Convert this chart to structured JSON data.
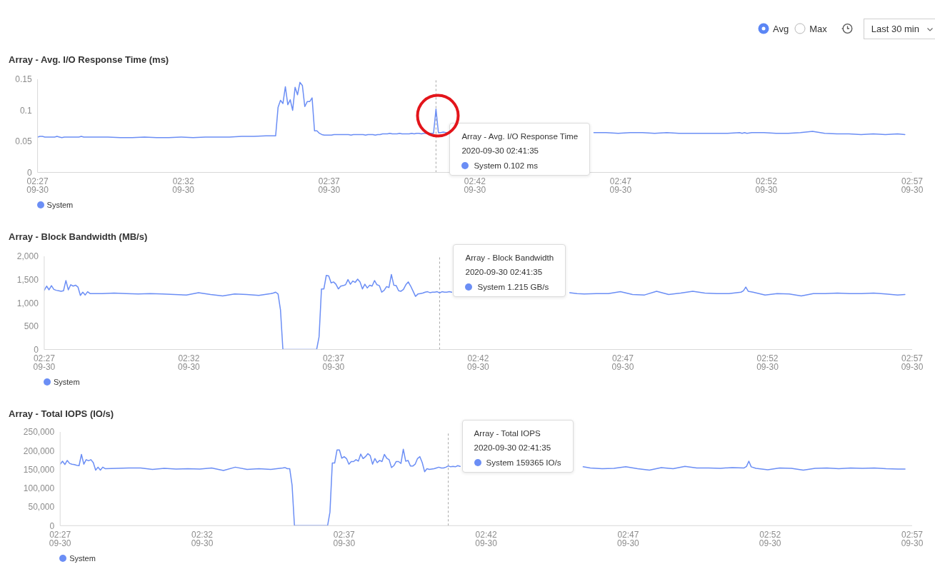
{
  "chart_data": [
    {
      "type": "other",
      "annotations": [
        "Avg",
        "Max",
        "Last 30 min"
      ]
    },
    {
      "type": "line",
      "title": "Array - Avg. I/O Response Time (ms)",
      "x": [
        "2020-09-30T02:27:55",
        "2020-09-30T02:28:00",
        "2020-09-30T02:28:05",
        "2020-09-30T02:28:10",
        "2020-09-30T02:28:15",
        "2020-09-30T02:28:20",
        "2020-09-30T02:28:25",
        "2020-09-30T02:28:30",
        "2020-09-30T02:28:35",
        "2020-09-30T02:28:40",
        "2020-09-30T02:28:45",
        "2020-09-30T02:28:50",
        "2020-09-30T02:28:55",
        "2020-09-30T02:29:00",
        "2020-09-30T02:29:05",
        "2020-09-30T02:29:10",
        "2020-09-30T02:29:15",
        "2020-09-30T02:29:20",
        "2020-09-30T02:29:25",
        "2020-09-30T02:29:30",
        "2020-09-30T02:29:55",
        "2020-09-30T02:30:20",
        "2020-09-30T02:30:45",
        "2020-09-30T02:31:10",
        "2020-09-30T02:31:35",
        "2020-09-30T02:32:00",
        "2020-09-30T02:32:25",
        "2020-09-30T02:32:50",
        "2020-09-30T02:33:15",
        "2020-09-30T02:33:40",
        "2020-09-30T02:34:05",
        "2020-09-30T02:34:30",
        "2020-09-30T02:34:55",
        "2020-09-30T02:35:20",
        "2020-09-30T02:35:45",
        "2020-09-30T02:35:50",
        "2020-09-30T02:35:55",
        "2020-09-30T02:36:00",
        "2020-09-30T02:36:05",
        "2020-09-30T02:36:10",
        "2020-09-30T02:36:15",
        "2020-09-30T02:36:20",
        "2020-09-30T02:36:25",
        "2020-09-30T02:36:30",
        "2020-09-30T02:36:35",
        "2020-09-30T02:36:40",
        "2020-09-30T02:36:45",
        "2020-09-30T02:36:50",
        "2020-09-30T02:36:55",
        "2020-09-30T02:37:00",
        "2020-09-30T02:37:05",
        "2020-09-30T02:37:10",
        "2020-09-30T02:37:15",
        "2020-09-30T02:37:20",
        "2020-09-30T02:37:25",
        "2020-09-30T02:37:30",
        "2020-09-30T02:37:35",
        "2020-09-30T02:37:40",
        "2020-09-30T02:37:45",
        "2020-09-30T02:37:50",
        "2020-09-30T02:37:55",
        "2020-09-30T02:38:00",
        "2020-09-30T02:38:05",
        "2020-09-30T02:38:10",
        "2020-09-30T02:38:15",
        "2020-09-30T02:38:20",
        "2020-09-30T02:38:25",
        "2020-09-30T02:38:30",
        "2020-09-30T02:38:35",
        "2020-09-30T02:38:40",
        "2020-09-30T02:38:45",
        "2020-09-30T02:38:50",
        "2020-09-30T02:38:55",
        "2020-09-30T02:39:00",
        "2020-09-30T02:39:05",
        "2020-09-30T02:39:10",
        "2020-09-30T02:39:15",
        "2020-09-30T02:39:20",
        "2020-09-30T02:39:25",
        "2020-09-30T02:39:30",
        "2020-09-30T02:39:35",
        "2020-09-30T02:39:40",
        "2020-09-30T02:39:45",
        "2020-09-30T02:39:50",
        "2020-09-30T02:39:55",
        "2020-09-30T02:40:00",
        "2020-09-30T02:40:05",
        "2020-09-30T02:40:10",
        "2020-09-30T02:40:15",
        "2020-09-30T02:40:20",
        "2020-09-30T02:40:25",
        "2020-09-30T02:40:30",
        "2020-09-30T02:40:35",
        "2020-09-30T02:40:40",
        "2020-09-30T02:40:45",
        "2020-09-30T02:40:50",
        "2020-09-30T02:40:55",
        "2020-09-30T02:41:00",
        "2020-09-30T02:41:05",
        "2020-09-30T02:41:10",
        "2020-09-30T02:41:15",
        "2020-09-30T02:41:20",
        "2020-09-30T02:41:25",
        "2020-09-30T02:41:30",
        "2020-09-30T02:41:35",
        "2020-09-30T02:41:40",
        "2020-09-30T02:41:45",
        "2020-09-30T02:41:50",
        "2020-09-30T02:41:55",
        "2020-09-30T02:42:00",
        "2020-09-30T02:42:05",
        "2020-09-30T02:46:05",
        "2020-09-30T02:46:20",
        "2020-09-30T02:46:35",
        "2020-09-30T02:47:00",
        "2020-09-30T02:47:25",
        "2020-09-30T02:47:50",
        "2020-09-30T02:48:15",
        "2020-09-30T02:48:40",
        "2020-09-30T02:49:05",
        "2020-09-30T02:49:30",
        "2020-09-30T02:49:55",
        "2020-09-30T02:50:20",
        "2020-09-30T02:50:45",
        "2020-09-30T02:51:10",
        "2020-09-30T02:51:35",
        "2020-09-30T02:52:00",
        "2020-09-30T02:52:05",
        "2020-09-30T02:52:10",
        "2020-09-30T02:52:15",
        "2020-09-30T02:52:25",
        "2020-09-30T02:52:50",
        "2020-09-30T02:53:15",
        "2020-09-30T02:53:40",
        "2020-09-30T02:54:05",
        "2020-09-30T02:54:30",
        "2020-09-30T02:54:55",
        "2020-09-30T02:55:20",
        "2020-09-30T02:55:45",
        "2020-09-30T02:56:10",
        "2020-09-30T02:56:35",
        "2020-09-30T02:57:00",
        "2020-09-30T02:57:25",
        "2020-09-30T02:57:40"
      ],
      "series": [
        {
          "name": "System",
          "color": "#6b8ef5",
          "values": [
            0.057,
            0.058,
            0.058,
            0.057,
            0.057,
            0.057,
            0.057,
            0.057,
            0.058,
            0.057,
            0.056,
            0.057,
            0.057,
            0.057,
            0.057,
            0.057,
            0.057,
            0.057,
            0.058,
            0.057,
            0.057,
            0.057,
            0.056,
            0.056,
            0.057,
            0.056,
            0.056,
            0.057,
            0.056,
            0.057,
            0.057,
            0.057,
            0.058,
            0.058,
            0.059,
            0.059,
            0.059,
            0.059,
            0.059,
            0.105,
            0.116,
            0.111,
            0.138,
            0.109,
            0.117,
            0.1,
            0.137,
            0.125,
            0.145,
            0.14,
            0.106,
            0.114,
            0.114,
            0.12,
            0.067,
            0.067,
            0.063,
            0.061,
            0.06,
            0.06,
            0.06,
            0.06,
            0.061,
            0.061,
            0.061,
            0.061,
            0.061,
            0.061,
            0.061,
            0.06,
            0.061,
            0.061,
            0.061,
            0.061,
            0.061,
            0.06,
            0.061,
            0.061,
            0.061,
            0.06,
            0.061,
            0.061,
            0.062,
            0.062,
            0.062,
            0.063,
            0.062,
            0.062,
            0.062,
            0.063,
            0.062,
            0.062,
            0.062,
            0.062,
            0.063,
            0.062,
            0.063,
            0.063,
            0.062,
            0.063,
            0.063,
            0.063,
            0.063,
            0.063,
            0.102,
            0.064,
            0.064,
            0.065,
            0.064,
            0.063,
            null,
            null,
            null,
            null,
            0.064,
            0.064,
            0.063,
            0.064,
            0.064,
            0.063,
            0.064,
            0.063,
            0.063,
            0.063,
            0.063,
            0.063,
            0.064,
            0.063,
            0.064,
            0.063,
            0.064,
            0.064,
            0.063,
            0.063,
            0.064,
            0.066,
            0.063,
            0.062,
            0.062,
            0.061,
            0.062,
            0.061,
            0.062,
            0.061
          ]
        }
      ],
      "xlim": [
        "2020-09-30T02:27:55",
        "2020-09-30T02:57:55"
      ],
      "xticks": [
        {
          "value": "2020-09-30T02:27:55",
          "label": "02:27\n09-30"
        },
        {
          "value": "2020-09-30T02:32:55",
          "label": "02:32\n09-30"
        },
        {
          "value": "2020-09-30T02:37:55",
          "label": "02:37\n09-30"
        },
        {
          "value": "2020-09-30T02:42:55",
          "label": "02:42\n09-30"
        },
        {
          "value": "2020-09-30T02:47:55",
          "label": "02:47\n09-30"
        },
        {
          "value": "2020-09-30T02:52:55",
          "label": "02:52\n09-30"
        },
        {
          "value": "2020-09-30T02:57:55",
          "label": "02:57\n09-30"
        }
      ],
      "ylim": [
        0,
        0.15
      ],
      "yticks": [
        0,
        0.05,
        0.1,
        0.15
      ],
      "legend": "bottom left",
      "ref_lines": [
        {
          "axis": "x",
          "value": "2020-09-30T02:41:35",
          "color": "#a6a6a6",
          "line_style": "dashed"
        }
      ],
      "annotations": [
        "Array - Avg. I/O Response Time",
        "2020-09-30 02:41:35",
        "System 0.102 ms"
      ]
    },
    {
      "type": "line",
      "title": "Array - Block Bandwidth (MB/s)",
      "x": [
        "2020-09-30T02:27:55",
        "2020-09-30T02:28:00",
        "2020-09-30T02:28:05",
        "2020-09-30T02:28:10",
        "2020-09-30T02:28:15",
        "2020-09-30T02:28:20",
        "2020-09-30T02:28:25",
        "2020-09-30T02:28:30",
        "2020-09-30T02:28:35",
        "2020-09-30T02:28:40",
        "2020-09-30T02:28:45",
        "2020-09-30T02:28:50",
        "2020-09-30T02:28:55",
        "2020-09-30T02:29:00",
        "2020-09-30T02:29:05",
        "2020-09-30T02:29:10",
        "2020-09-30T02:29:15",
        "2020-09-30T02:29:20",
        "2020-09-30T02:29:25",
        "2020-09-30T02:29:30",
        "2020-09-30T02:29:55",
        "2020-09-30T02:30:20",
        "2020-09-30T02:30:45",
        "2020-09-30T02:31:10",
        "2020-09-30T02:31:35",
        "2020-09-30T02:32:00",
        "2020-09-30T02:32:25",
        "2020-09-30T02:32:50",
        "2020-09-30T02:33:15",
        "2020-09-30T02:33:40",
        "2020-09-30T02:34:05",
        "2020-09-30T02:34:30",
        "2020-09-30T02:34:55",
        "2020-09-30T02:35:20",
        "2020-09-30T02:35:45",
        "2020-09-30T02:35:50",
        "2020-09-30T02:35:55",
        "2020-09-30T02:36:00",
        "2020-09-30T02:36:05",
        "2020-09-30T02:36:10",
        "2020-09-30T02:36:15",
        "2020-09-30T02:36:20",
        "2020-09-30T02:36:25",
        "2020-09-30T02:36:30",
        "2020-09-30T02:36:35",
        "2020-09-30T02:36:40",
        "2020-09-30T02:36:45",
        "2020-09-30T02:36:50",
        "2020-09-30T02:36:55",
        "2020-09-30T02:37:00",
        "2020-09-30T02:37:05",
        "2020-09-30T02:37:10",
        "2020-09-30T02:37:15",
        "2020-09-30T02:37:20",
        "2020-09-30T02:37:25",
        "2020-09-30T02:37:30",
        "2020-09-30T02:37:35",
        "2020-09-30T02:37:40",
        "2020-09-30T02:37:45",
        "2020-09-30T02:37:50",
        "2020-09-30T02:37:55",
        "2020-09-30T02:38:00",
        "2020-09-30T02:38:05",
        "2020-09-30T02:38:10",
        "2020-09-30T02:38:15",
        "2020-09-30T02:38:20",
        "2020-09-30T02:38:25",
        "2020-09-30T02:38:30",
        "2020-09-30T02:38:35",
        "2020-09-30T02:38:40",
        "2020-09-30T02:38:45",
        "2020-09-30T02:38:50",
        "2020-09-30T02:38:55",
        "2020-09-30T02:39:00",
        "2020-09-30T02:39:05",
        "2020-09-30T02:39:10",
        "2020-09-30T02:39:15",
        "2020-09-30T02:39:20",
        "2020-09-30T02:39:25",
        "2020-09-30T02:39:30",
        "2020-09-30T02:39:35",
        "2020-09-30T02:39:40",
        "2020-09-30T02:39:45",
        "2020-09-30T02:39:50",
        "2020-09-30T02:39:55",
        "2020-09-30T02:40:00",
        "2020-09-30T02:40:05",
        "2020-09-30T02:40:10",
        "2020-09-30T02:40:15",
        "2020-09-30T02:40:20",
        "2020-09-30T02:40:25",
        "2020-09-30T02:40:30",
        "2020-09-30T02:40:35",
        "2020-09-30T02:40:40",
        "2020-09-30T02:40:45",
        "2020-09-30T02:40:50",
        "2020-09-30T02:40:55",
        "2020-09-30T02:41:00",
        "2020-09-30T02:41:05",
        "2020-09-30T02:41:10",
        "2020-09-30T02:41:15",
        "2020-09-30T02:41:20",
        "2020-09-30T02:41:25",
        "2020-09-30T02:41:30",
        "2020-09-30T02:41:35",
        "2020-09-30T02:41:40",
        "2020-09-30T02:41:45",
        "2020-09-30T02:41:50",
        "2020-09-30T02:41:55",
        "2020-09-30T02:42:00",
        "2020-09-30T02:42:05",
        "2020-09-30T02:46:05",
        "2020-09-30T02:46:20",
        "2020-09-30T02:46:35",
        "2020-09-30T02:47:00",
        "2020-09-30T02:47:25",
        "2020-09-30T02:47:50",
        "2020-09-30T02:48:15",
        "2020-09-30T02:48:40",
        "2020-09-30T02:49:05",
        "2020-09-30T02:49:30",
        "2020-09-30T02:49:55",
        "2020-09-30T02:50:20",
        "2020-09-30T02:50:45",
        "2020-09-30T02:51:10",
        "2020-09-30T02:51:35",
        "2020-09-30T02:52:00",
        "2020-09-30T02:52:05",
        "2020-09-30T02:52:10",
        "2020-09-30T02:52:15",
        "2020-09-30T02:52:25",
        "2020-09-30T02:52:50",
        "2020-09-30T02:53:15",
        "2020-09-30T02:53:40",
        "2020-09-30T02:54:05",
        "2020-09-30T02:54:30",
        "2020-09-30T02:54:55",
        "2020-09-30T02:55:20",
        "2020-09-30T02:55:45",
        "2020-09-30T02:56:10",
        "2020-09-30T02:56:35",
        "2020-09-30T02:57:00",
        "2020-09-30T02:57:25",
        "2020-09-30T02:57:40"
      ],
      "series": [
        {
          "name": "System",
          "color": "#6b8ef5",
          "values": [
            1270,
            1360,
            1280,
            1370,
            1290,
            1270,
            1260,
            1250,
            1260,
            1480,
            1280,
            1390,
            1360,
            1380,
            1340,
            1160,
            1230,
            1170,
            1240,
            1200,
            1200,
            1210,
            1200,
            1190,
            1200,
            1190,
            1180,
            1170,
            1220,
            1180,
            1150,
            1190,
            1180,
            1160,
            1200,
            1210,
            1230,
            1190,
            850,
            0,
            0,
            0,
            0,
            0,
            0,
            0,
            0,
            0,
            0,
            0,
            0,
            0,
            0,
            0,
            270,
            1300,
            1300,
            1590,
            1580,
            1430,
            1450,
            1400,
            1300,
            1360,
            1370,
            1390,
            1500,
            1400,
            1470,
            1440,
            1510,
            1450,
            1300,
            1400,
            1320,
            1380,
            1360,
            1480,
            1390,
            1370,
            1230,
            1270,
            1350,
            1330,
            1610,
            1380,
            1370,
            1260,
            1250,
            1290,
            1390,
            1450,
            1360,
            1250,
            1140,
            1190,
            1200,
            1210,
            1230,
            1240,
            1220,
            1230,
            1230,
            1240,
            1215,
            1240,
            1230,
            1230,
            1240,
            1230,
            null,
            1220,
            1200,
            1190,
            1200,
            1200,
            1240,
            1180,
            1170,
            1250,
            1180,
            1210,
            1250,
            1210,
            1200,
            1200,
            1230,
            1260,
            1340,
            1250,
            1230,
            1170,
            1200,
            1190,
            1150,
            1200,
            1200,
            1210,
            1200,
            1200,
            1210,
            1190,
            1170,
            1180
          ]
        }
      ],
      "xlim": [
        "2020-09-30T02:27:55",
        "2020-09-30T02:57:55"
      ],
      "xticks": [
        {
          "value": "2020-09-30T02:27:55",
          "label": "02:27\n09-30"
        },
        {
          "value": "2020-09-30T02:32:55",
          "label": "02:32\n09-30"
        },
        {
          "value": "2020-09-30T02:37:55",
          "label": "02:37\n09-30"
        },
        {
          "value": "2020-09-30T02:42:55",
          "label": "02:42\n09-30"
        },
        {
          "value": "2020-09-30T02:47:55",
          "label": "02:47\n09-30"
        },
        {
          "value": "2020-09-30T02:52:55",
          "label": "02:52\n09-30"
        },
        {
          "value": "2020-09-30T02:57:55",
          "label": "02:57\n09-30"
        }
      ],
      "ylim": [
        0,
        2000
      ],
      "yticks": [
        0,
        500,
        {
          "value": 1000,
          "label": "1,000"
        },
        {
          "value": 1500,
          "label": "1,500"
        },
        {
          "value": 2000,
          "label": "2,000"
        }
      ],
      "legend": "bottom left",
      "ref_lines": [
        {
          "axis": "x",
          "value": "2020-09-30T02:41:35",
          "color": "#a6a6a6",
          "line_style": "dashed"
        }
      ],
      "annotations": [
        "Array - Block Bandwidth",
        "2020-09-30 02:41:35",
        "System 1.215 GB/s"
      ]
    },
    {
      "type": "line",
      "title": "Array - Total IOPS (IO/s)",
      "x": [
        "2020-09-30T02:27:55",
        "2020-09-30T02:28:00",
        "2020-09-30T02:28:05",
        "2020-09-30T02:28:10",
        "2020-09-30T02:28:15",
        "2020-09-30T02:28:20",
        "2020-09-30T02:28:25",
        "2020-09-30T02:28:30",
        "2020-09-30T02:28:35",
        "2020-09-30T02:28:40",
        "2020-09-30T02:28:45",
        "2020-09-30T02:28:50",
        "2020-09-30T02:28:55",
        "2020-09-30T02:29:00",
        "2020-09-30T02:29:05",
        "2020-09-30T02:29:10",
        "2020-09-30T02:29:15",
        "2020-09-30T02:29:20",
        "2020-09-30T02:29:25",
        "2020-09-30T02:29:30",
        "2020-09-30T02:29:55",
        "2020-09-30T02:30:20",
        "2020-09-30T02:30:45",
        "2020-09-30T02:31:10",
        "2020-09-30T02:31:35",
        "2020-09-30T02:32:00",
        "2020-09-30T02:32:25",
        "2020-09-30T02:32:50",
        "2020-09-30T02:33:15",
        "2020-09-30T02:33:40",
        "2020-09-30T02:34:05",
        "2020-09-30T02:34:30",
        "2020-09-30T02:34:55",
        "2020-09-30T02:35:20",
        "2020-09-30T02:35:45",
        "2020-09-30T02:35:50",
        "2020-09-30T02:35:55",
        "2020-09-30T02:36:00",
        "2020-09-30T02:36:05",
        "2020-09-30T02:36:10",
        "2020-09-30T02:36:15",
        "2020-09-30T02:36:20",
        "2020-09-30T02:36:25",
        "2020-09-30T02:36:30",
        "2020-09-30T02:36:35",
        "2020-09-30T02:36:40",
        "2020-09-30T02:36:45",
        "2020-09-30T02:36:50",
        "2020-09-30T02:36:55",
        "2020-09-30T02:37:00",
        "2020-09-30T02:37:05",
        "2020-09-30T02:37:10",
        "2020-09-30T02:37:15",
        "2020-09-30T02:37:20",
        "2020-09-30T02:37:25",
        "2020-09-30T02:37:30",
        "2020-09-30T02:37:35",
        "2020-09-30T02:37:40",
        "2020-09-30T02:37:45",
        "2020-09-30T02:37:50",
        "2020-09-30T02:37:55",
        "2020-09-30T02:38:00",
        "2020-09-30T02:38:05",
        "2020-09-30T02:38:10",
        "2020-09-30T02:38:15",
        "2020-09-30T02:38:20",
        "2020-09-30T02:38:25",
        "2020-09-30T02:38:30",
        "2020-09-30T02:38:35",
        "2020-09-30T02:38:40",
        "2020-09-30T02:38:45",
        "2020-09-30T02:38:50",
        "2020-09-30T02:38:55",
        "2020-09-30T02:39:00",
        "2020-09-30T02:39:05",
        "2020-09-30T02:39:10",
        "2020-09-30T02:39:15",
        "2020-09-30T02:39:20",
        "2020-09-30T02:39:25",
        "2020-09-30T02:39:30",
        "2020-09-30T02:39:35",
        "2020-09-30T02:39:40",
        "2020-09-30T02:39:45",
        "2020-09-30T02:39:50",
        "2020-09-30T02:39:55",
        "2020-09-30T02:40:00",
        "2020-09-30T02:40:05",
        "2020-09-30T02:40:10",
        "2020-09-30T02:40:15",
        "2020-09-30T02:40:20",
        "2020-09-30T02:40:25",
        "2020-09-30T02:40:30",
        "2020-09-30T02:40:35",
        "2020-09-30T02:40:40",
        "2020-09-30T02:40:45",
        "2020-09-30T02:40:50",
        "2020-09-30T02:40:55",
        "2020-09-30T02:41:00",
        "2020-09-30T02:41:05",
        "2020-09-30T02:41:10",
        "2020-09-30T02:41:15",
        "2020-09-30T02:41:20",
        "2020-09-30T02:41:25",
        "2020-09-30T02:41:30",
        "2020-09-30T02:41:35",
        "2020-09-30T02:41:40",
        "2020-09-30T02:41:45",
        "2020-09-30T02:41:50",
        "2020-09-30T02:41:55",
        "2020-09-30T02:42:00",
        "2020-09-30T02:42:05",
        "2020-09-30T02:46:05",
        "2020-09-30T02:46:20",
        "2020-09-30T02:46:35",
        "2020-09-30T02:47:00",
        "2020-09-30T02:47:25",
        "2020-09-30T02:47:50",
        "2020-09-30T02:48:15",
        "2020-09-30T02:48:40",
        "2020-09-30T02:49:05",
        "2020-09-30T02:49:30",
        "2020-09-30T02:49:55",
        "2020-09-30T02:50:20",
        "2020-09-30T02:50:45",
        "2020-09-30T02:51:10",
        "2020-09-30T02:51:35",
        "2020-09-30T02:52:00",
        "2020-09-30T02:52:05",
        "2020-09-30T02:52:10",
        "2020-09-30T02:52:15",
        "2020-09-30T02:52:25",
        "2020-09-30T02:52:50",
        "2020-09-30T02:53:15",
        "2020-09-30T02:53:40",
        "2020-09-30T02:54:05",
        "2020-09-30T02:54:30",
        "2020-09-30T02:54:55",
        "2020-09-30T02:55:20",
        "2020-09-30T02:55:45",
        "2020-09-30T02:56:10",
        "2020-09-30T02:56:35",
        "2020-09-30T02:57:00",
        "2020-09-30T02:57:25",
        "2020-09-30T02:57:40"
      ],
      "series": [
        {
          "name": "System",
          "color": "#6b8ef5",
          "values": [
            164000,
            172000,
            163000,
            174000,
            166000,
            164000,
            163000,
            161000,
            160000,
            190000,
            164000,
            176000,
            173000,
            176000,
            168000,
            148000,
            156000,
            148000,
            156000,
            152000,
            153000,
            154000,
            154000,
            150000,
            153000,
            151000,
            152000,
            151000,
            154000,
            147000,
            156000,
            150000,
            152000,
            150000,
            154000,
            155000,
            152000,
            152000,
            108000,
            0,
            0,
            0,
            0,
            0,
            0,
            0,
            0,
            0,
            0,
            0,
            0,
            0,
            0,
            0,
            36000,
            167000,
            167000,
            202000,
            202000,
            180000,
            184000,
            179000,
            164000,
            171000,
            171000,
            176000,
            172000,
            191000,
            179000,
            184000,
            192000,
            187000,
            164000,
            179000,
            168000,
            174000,
            171000,
            190000,
            180000,
            176000,
            155000,
            160000,
            171000,
            171000,
            166000,
            204000,
            172000,
            174000,
            159000,
            159000,
            164000,
            179000,
            184000,
            168000,
            144000,
            152000,
            150000,
            151000,
            152000,
            154000,
            156000,
            154000,
            154000,
            156000,
            159365,
            157000,
            158000,
            157000,
            160000,
            158000,
            null,
            null,
            157000,
            154000,
            152000,
            153000,
            157000,
            152000,
            148000,
            155000,
            152000,
            158000,
            154000,
            154000,
            153000,
            155000,
            154000,
            158000,
            172000,
            157000,
            153000,
            149000,
            154000,
            153000,
            148000,
            153000,
            154000,
            152000,
            154000,
            153000,
            154000,
            152000,
            151000,
            151000
          ]
        }
      ],
      "xlim": [
        "2020-09-30T02:27:55",
        "2020-09-30T02:57:55"
      ],
      "xticks": [
        {
          "value": "2020-09-30T02:27:55",
          "label": "02:27\n09-30"
        },
        {
          "value": "2020-09-30T02:32:55",
          "label": "02:32\n09-30"
        },
        {
          "value": "2020-09-30T02:37:55",
          "label": "02:37\n09-30"
        },
        {
          "value": "2020-09-30T02:42:55",
          "label": "02:42\n09-30"
        },
        {
          "value": "2020-09-30T02:47:55",
          "label": "02:47\n09-30"
        },
        {
          "value": "2020-09-30T02:52:55",
          "label": "02:52\n09-30"
        },
        {
          "value": "2020-09-30T02:57:55",
          "label": "02:57\n09-30"
        }
      ],
      "ylim": [
        0,
        250000
      ],
      "yticks": [
        0,
        {
          "value": 50000,
          "label": "50,000"
        },
        {
          "value": 100000,
          "label": "100,000"
        },
        {
          "value": 150000,
          "label": "150,000"
        },
        {
          "value": 200000,
          "label": "200,000"
        },
        {
          "value": 250000,
          "label": "250,000"
        }
      ],
      "legend": "bottom left",
      "ref_lines": [
        {
          "axis": "x",
          "value": "2020-09-30T02:41:35",
          "color": "#a6a6a6",
          "line_style": "dashed"
        }
      ],
      "annotations": [
        "Array - Total IOPS",
        "2020-09-30 02:41:35",
        "System 159365 IO/s"
      ]
    }
  ]
}
